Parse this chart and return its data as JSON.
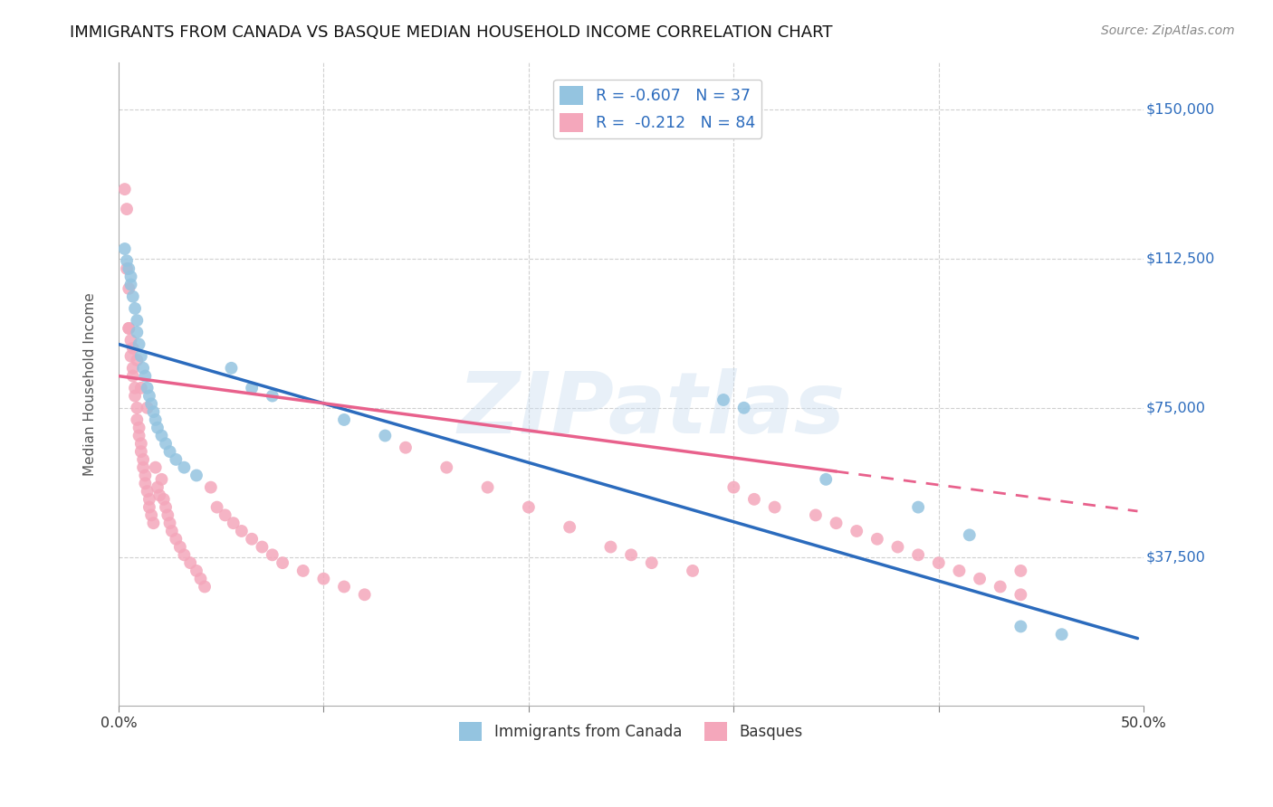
{
  "title": "IMMIGRANTS FROM CANADA VS BASQUE MEDIAN HOUSEHOLD INCOME CORRELATION CHART",
  "source": "Source: ZipAtlas.com",
  "ylabel": "Median Household Income",
  "xlim": [
    0,
    0.5
  ],
  "ylim": [
    0,
    162000
  ],
  "ytick_vals": [
    37500,
    75000,
    112500,
    150000
  ],
  "ytick_labels": [
    "$37,500",
    "$75,000",
    "$112,500",
    "$150,000"
  ],
  "xtick_vals": [
    0.0,
    0.1,
    0.2,
    0.3,
    0.4,
    0.5
  ],
  "xtick_labels": [
    "0.0%",
    "",
    "",
    "",
    "",
    "50.0%"
  ],
  "blue_color": "#94c4e0",
  "pink_color": "#f4a7bb",
  "blue_line_color": "#2b6bbd",
  "pink_line_color": "#e8618c",
  "pink_line_dashed_color": "#e8618c",
  "legend_blue_label": "R = -0.607   N = 37",
  "legend_pink_label": "R =  -0.212   N = 84",
  "legend_bottom_blue": "Immigrants from Canada",
  "legend_bottom_pink": "Basques",
  "watermark_text": "ZIPatlas",
  "background_color": "#ffffff",
  "grid_color": "#d0d0d0",
  "blue_line_x0": 0.0,
  "blue_line_y0": 91000,
  "blue_line_x1": 0.497,
  "blue_line_y1": 17000,
  "pink_line_solid_x0": 0.0,
  "pink_line_solid_y0": 83000,
  "pink_line_solid_x1": 0.35,
  "pink_line_solid_y1": 59000,
  "pink_line_dash_x0": 0.35,
  "pink_line_dash_y0": 59000,
  "pink_line_dash_x1": 0.497,
  "pink_line_dash_y1": 49000,
  "blue_x": [
    0.003,
    0.004,
    0.005,
    0.006,
    0.006,
    0.007,
    0.008,
    0.009,
    0.009,
    0.01,
    0.011,
    0.012,
    0.013,
    0.014,
    0.015,
    0.016,
    0.017,
    0.018,
    0.019,
    0.021,
    0.023,
    0.025,
    0.028,
    0.032,
    0.038,
    0.055,
    0.065,
    0.075,
    0.11,
    0.13,
    0.295,
    0.305,
    0.345,
    0.39,
    0.415,
    0.44,
    0.46
  ],
  "blue_y": [
    115000,
    112000,
    110000,
    108000,
    106000,
    103000,
    100000,
    97000,
    94000,
    91000,
    88000,
    85000,
    83000,
    80000,
    78000,
    76000,
    74000,
    72000,
    70000,
    68000,
    66000,
    64000,
    62000,
    60000,
    58000,
    85000,
    80000,
    78000,
    72000,
    68000,
    77000,
    75000,
    57000,
    50000,
    43000,
    20000,
    18000
  ],
  "pink_x": [
    0.003,
    0.004,
    0.004,
    0.005,
    0.005,
    0.006,
    0.006,
    0.007,
    0.007,
    0.008,
    0.008,
    0.009,
    0.009,
    0.01,
    0.01,
    0.011,
    0.011,
    0.012,
    0.012,
    0.013,
    0.013,
    0.014,
    0.015,
    0.015,
    0.016,
    0.017,
    0.018,
    0.019,
    0.02,
    0.021,
    0.022,
    0.023,
    0.024,
    0.025,
    0.026,
    0.028,
    0.03,
    0.032,
    0.035,
    0.038,
    0.04,
    0.042,
    0.045,
    0.048,
    0.052,
    0.056,
    0.06,
    0.065,
    0.07,
    0.075,
    0.08,
    0.09,
    0.1,
    0.11,
    0.12,
    0.14,
    0.16,
    0.18,
    0.2,
    0.22,
    0.24,
    0.25,
    0.26,
    0.28,
    0.3,
    0.31,
    0.32,
    0.34,
    0.35,
    0.36,
    0.37,
    0.38,
    0.39,
    0.4,
    0.41,
    0.42,
    0.43,
    0.44,
    0.005,
    0.007,
    0.009,
    0.011,
    0.014,
    0.44
  ],
  "pink_y": [
    130000,
    125000,
    110000,
    105000,
    95000,
    92000,
    88000,
    85000,
    83000,
    80000,
    78000,
    75000,
    72000,
    70000,
    68000,
    66000,
    64000,
    62000,
    60000,
    58000,
    56000,
    54000,
    52000,
    50000,
    48000,
    46000,
    60000,
    55000,
    53000,
    57000,
    52000,
    50000,
    48000,
    46000,
    44000,
    42000,
    40000,
    38000,
    36000,
    34000,
    32000,
    30000,
    55000,
    50000,
    48000,
    46000,
    44000,
    42000,
    40000,
    38000,
    36000,
    34000,
    32000,
    30000,
    28000,
    65000,
    60000,
    55000,
    50000,
    45000,
    40000,
    38000,
    36000,
    34000,
    55000,
    52000,
    50000,
    48000,
    46000,
    44000,
    42000,
    40000,
    38000,
    36000,
    34000,
    32000,
    30000,
    28000,
    95000,
    90000,
    87000,
    80000,
    75000,
    34000
  ]
}
